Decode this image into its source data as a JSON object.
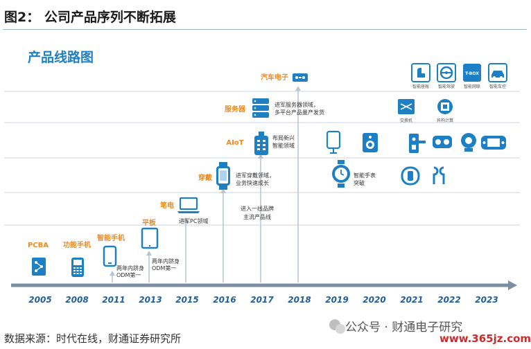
{
  "figure_title": "图2： 公司产品序列不断拓展",
  "diagram_title": "产品线路图",
  "years": [
    "2005",
    "2008",
    "2011",
    "2013",
    "2015",
    "2016",
    "2017",
    "2018",
    "2019",
    "2020",
    "2021",
    "2022",
    "2023"
  ],
  "milestones": {
    "pcba": "PCBA",
    "feature_phone": "功能手机",
    "smartphone": "智能手机",
    "tablet": "平板",
    "laptop": "笔电",
    "wearable": "穿戴",
    "aiot": "AIoT",
    "server": "服务器",
    "auto": "汽车电子"
  },
  "notes": {
    "odm_2011_a": "两年内跻身",
    "odm_2011_b": "ODM第一",
    "odm_2013_a": "两年内跻身",
    "odm_2013_b": "ODM第一",
    "pc": "进军PC领域",
    "brand_a": "进入一线品牌",
    "brand_b": "主流产品线",
    "wear_a": "进军穿戴领域，",
    "wear_b": "业务快速成长",
    "aiot_a": "布局新兴",
    "aiot_b": "智能领域",
    "server_a": "进军服务器领域，",
    "server_b": "多平台产品量产发货",
    "watch_a": "智能手表",
    "watch_b": "突破"
  },
  "icon_labels": {
    "switch": "交换机",
    "edge": "异构计算",
    "cockpit": "智能座舱",
    "drive": "智能驾驶",
    "tbox_badge": "T-BOX",
    "tbox": "智能网联",
    "body": "智能车控"
  },
  "source": "数据来源：时代在线，财通证券研究所",
  "watermark": "公众号 · 财通电子研究",
  "watermark_url": "www.365jz.com",
  "colors": {
    "accent": "#1d7fc4",
    "orange": "#f08a1d",
    "year": "#1f5f9e",
    "axis": "#7a8fa3"
  }
}
